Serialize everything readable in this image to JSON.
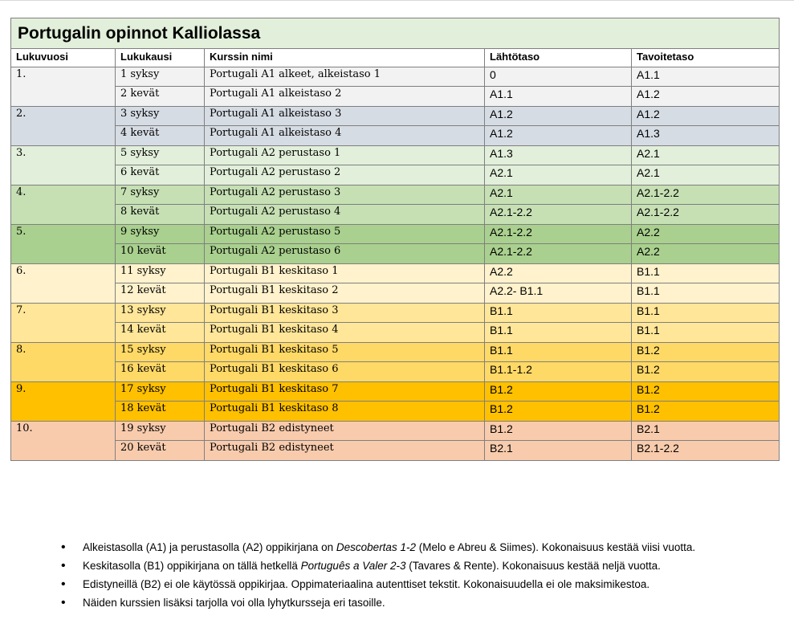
{
  "title": "Portugalin opinnot Kalliolassa",
  "columns": [
    "Lukuvuosi",
    "Lukukausi",
    "Kurssin nimi",
    "Lähtötaso",
    "Tavoitetaso"
  ],
  "years": [
    {
      "year": "1.",
      "color": "#f2f2f2",
      "rows": [
        {
          "term": "1 syksy",
          "course": "Portugali A1 alkeet, alkeistaso 1",
          "start": "0",
          "goal": "A1.1"
        },
        {
          "term": "2 kevät",
          "course": "Portugali A1 alkeistaso 2",
          "start": "A1.1",
          "goal": "A1.2"
        }
      ]
    },
    {
      "year": "2.",
      "color": "#d6dce4",
      "rows": [
        {
          "term": "3 syksy",
          "course": "Portugali A1 alkeistaso 3",
          "start": "A1.2",
          "goal": "A1.2"
        },
        {
          "term": "4 kevät",
          "course": "Portugali A1 alkeistaso 4",
          "start": "A1.2",
          "goal": "A1.3"
        }
      ]
    },
    {
      "year": "3.",
      "color": "#e2efda",
      "rows": [
        {
          "term": "5 syksy",
          "course": "Portugali A2 perustaso 1",
          "start": "A1.3",
          "goal": "A2.1"
        },
        {
          "term": "6 kevät",
          "course": "Portugali A2 perustaso 2",
          "start": "A2.1",
          "goal": "A2.1"
        }
      ]
    },
    {
      "year": "4.",
      "color": "#c6e0b4",
      "rows": [
        {
          "term": "7 syksy",
          "course": "Portugali A2 perustaso 3",
          "start": "A2.1",
          "goal": "A2.1-2.2"
        },
        {
          "term": "8 kevät",
          "course": "Portugali A2 perustaso 4",
          "start": "A2.1-2.2",
          "goal": "A2.1-2.2"
        }
      ]
    },
    {
      "year": "5.",
      "color": "#a9d08e",
      "rows": [
        {
          "term": "9 syksy",
          "course": "Portugali A2 perustaso 5",
          "start": "A2.1-2.2",
          "goal": "A2.2"
        },
        {
          "term": "10 kevät",
          "course": "Portugali A2 perustaso 6",
          "start": "A2.1-2.2",
          "goal": "A2.2"
        }
      ]
    },
    {
      "year": "6.",
      "color": "#fff2cc",
      "rows": [
        {
          "term": "11 syksy",
          "course": "Portugali B1 keskitaso 1",
          "start": "A2.2",
          "goal": "B1.1"
        },
        {
          "term": "12 kevät",
          "course": "Portugali B1 keskitaso 2",
          "start": "A2.2- B1.1",
          "goal": "B1.1"
        }
      ]
    },
    {
      "year": "7.",
      "color": "#ffe699",
      "rows": [
        {
          "term": "13 syksy",
          "course": "Portugali B1 keskitaso 3",
          "start": "B1.1",
          "goal": "B1.1"
        },
        {
          "term": "14 kevät",
          "course": "Portugali B1 keskitaso 4",
          "start": "B1.1",
          "goal": "B1.1"
        }
      ]
    },
    {
      "year": "8.",
      "color": "#ffd966",
      "rows": [
        {
          "term": "15 syksy",
          "course": "Portugali B1 keskitaso 5",
          "start": "B1.1",
          "goal": "B1.2"
        },
        {
          "term": "16 kevät",
          "course": "Portugali B1 keskitaso 6",
          "start": "B1.1-1.2",
          "goal": "B1.2"
        }
      ]
    },
    {
      "year": "9.",
      "color": "#ffc000",
      "rows": [
        {
          "term": "17 syksy",
          "course": "Portugali B1 keskitaso 7",
          "start": "B1.2",
          "goal": "B1.2"
        },
        {
          "term": "18 kevät",
          "course": "Portugali B1 keskitaso 8",
          "start": "B1.2",
          "goal": "B1.2"
        }
      ]
    },
    {
      "year": "10.",
      "color": "#f8cbad",
      "rows": [
        {
          "term": "19 syksy",
          "course": "Portugali B2 edistyneet",
          "start": "B1.2",
          "goal": "B2.1"
        },
        {
          "term": "20 kevät",
          "course": "Portugali B2 edistyneet",
          "start": "B2.1",
          "goal": "B2.1-2.2"
        }
      ]
    }
  ],
  "notes": [
    {
      "pre": "Alkeistasolla (A1) ja perustasolla (A2) oppikirjana on ",
      "em": "Descobertas 1-2",
      "post": " (Melo e Abreu & Siimes). Kokonaisuus kestää viisi vuotta."
    },
    {
      "pre": "Keskitasolla (B1) oppikirjana on tällä hetkellä ",
      "em": "Português a Valer 2-3",
      "post": " (Tavares & Rente). Kokonaisuus kestää neljä vuotta."
    },
    {
      "pre": "Edistyneillä (B2) ei ole käytössä oppikirjaa. Oppimateriaalina autenttiset tekstit. Kokonaisuudella ei ole maksimikestoa.",
      "em": "",
      "post": ""
    },
    {
      "pre": "Näiden kurssien lisäksi tarjolla voi olla lyhytkursseja eri tasoille.",
      "em": "",
      "post": ""
    }
  ]
}
